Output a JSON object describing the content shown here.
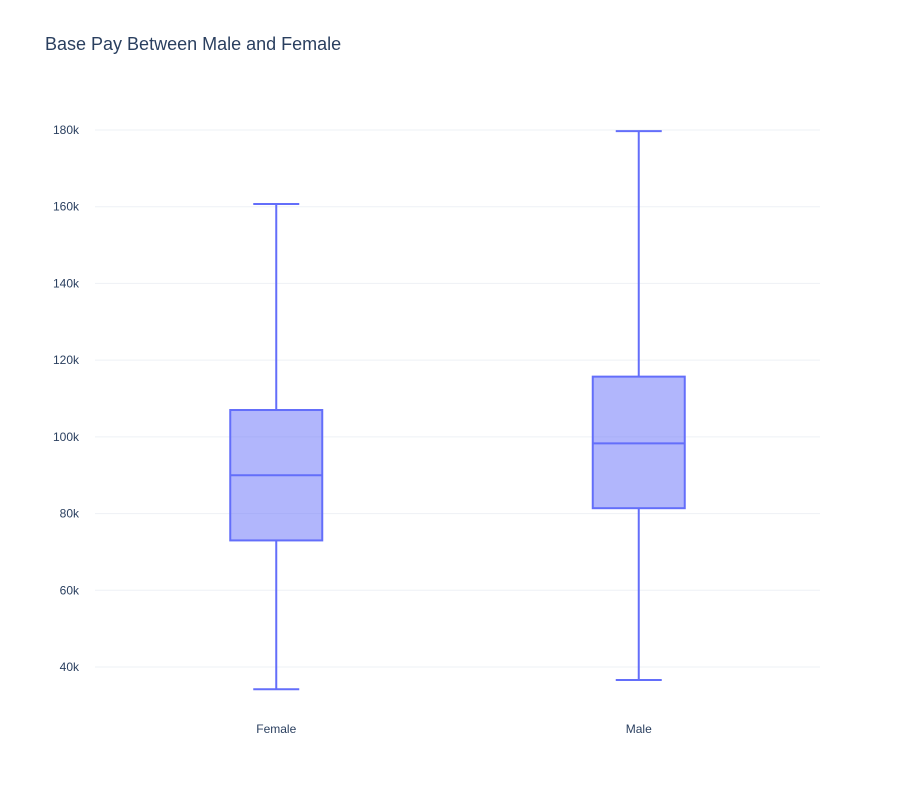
{
  "chart_data": {
    "type": "box",
    "title": "Base Pay  Between Male and Female",
    "xlabel": "",
    "ylabel": "",
    "ylim": [
      28000,
      190000
    ],
    "y_ticks": [
      40000,
      60000,
      80000,
      100000,
      120000,
      140000,
      160000,
      180000
    ],
    "y_tick_labels": [
      "40k",
      "60k",
      "80k",
      "100k",
      "120k",
      "140k",
      "160k",
      "180k"
    ],
    "grid": true,
    "legend": "none",
    "categories": [
      "Female",
      "Male"
    ],
    "boxes": [
      {
        "category": "Female",
        "min": 34200,
        "q1": 73000,
        "median": 90000,
        "q3": 107000,
        "max": 160700
      },
      {
        "category": "Male",
        "min": 36600,
        "q1": 81400,
        "median": 98300,
        "q3": 115700,
        "max": 179700
      }
    ],
    "colors": {
      "line": "#636efa",
      "fill": "#636efa",
      "grid": "#eef1f5",
      "text": "#2a3f5f"
    }
  }
}
